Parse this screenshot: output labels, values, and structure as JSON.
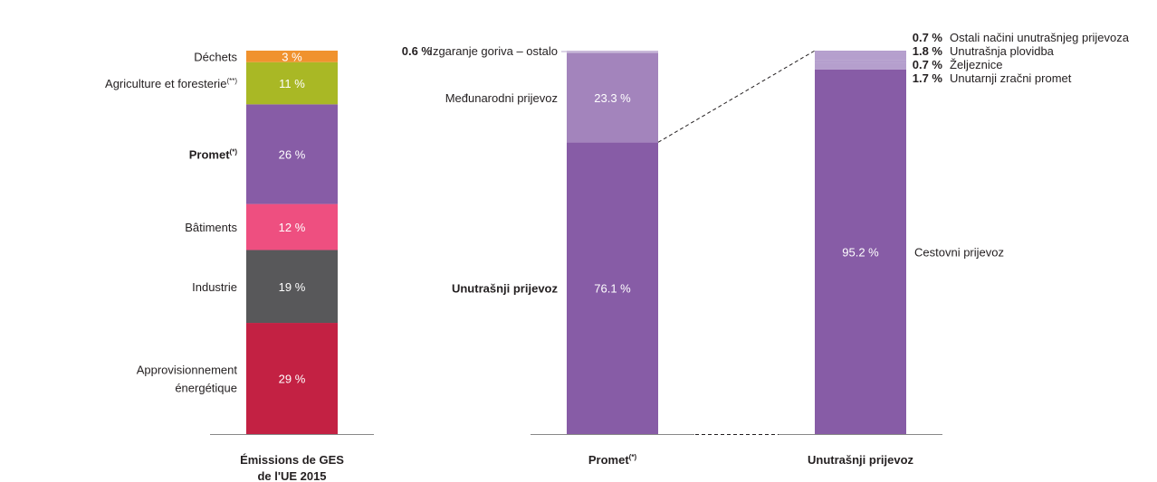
{
  "chart_data": [
    {
      "type": "bar",
      "stacked": true,
      "categories": [
        "Émissions de GES de l'UE 2015"
      ],
      "xlabel_lines": [
        "Émissions de GES",
        "de l'UE 2015"
      ],
      "segments": [
        {
          "label": "Approvisionnement",
          "label2": "énergétique",
          "value": 29,
          "value_label": "29 %",
          "color": "#c32143"
        },
        {
          "label": "Industrie",
          "value": 19,
          "value_label": "19 %",
          "color": "#58585a"
        },
        {
          "label": "Bâtiments",
          "value": 12,
          "value_label": "12 %",
          "color": "#ee4f80"
        },
        {
          "label": "Promet",
          "sup": "(*)",
          "bold": true,
          "value": 26,
          "value_label": "26 %",
          "color": "#875ca6"
        },
        {
          "label": "Agriculture et foresterie",
          "sup": "(**)",
          "value": 11,
          "value_label": "11 %",
          "color": "#a9b825"
        },
        {
          "label": "Déchets",
          "value": 3,
          "value_label": "3 %",
          "color": "#f0922e"
        }
      ]
    },
    {
      "type": "bar",
      "stacked": true,
      "categories": [
        "Promet"
      ],
      "xlabel": "Promet",
      "xlabel_sup": "(*)",
      "segments": [
        {
          "label": "Unutrašnji prijevoz",
          "bold": true,
          "value": 76.1,
          "value_label": "76.1 %",
          "color": "#875ca6"
        },
        {
          "label": "Međunarodni prijevoz",
          "value": 23.3,
          "value_label": "23.3 %",
          "color": "#a384bc"
        },
        {
          "label": "Izgaranje goriva – ostalo",
          "value": 0.6,
          "value_label": "0.6 %",
          "color": "#c9b8d9"
        }
      ]
    },
    {
      "type": "bar",
      "stacked": true,
      "categories": [
        "Unutrašnji prijevoz"
      ],
      "xlabel": "Unutrašnji prijevoz",
      "segments": [
        {
          "label": "Cestovni prijevoz",
          "value": 95.2,
          "value_label": "95.2 %",
          "color": "#875ca6"
        },
        {
          "label": "Unutarnji zračni promet",
          "value": 1.7,
          "value_label": "1.7 %",
          "color": "#b59fcd"
        },
        {
          "label": "Željeznice",
          "value": 0.7,
          "value_label": "0.7 %",
          "color": "#b59fcd"
        },
        {
          "label": "Unutrašnja plovidba",
          "value": 1.8,
          "value_label": "1.8 %",
          "color": "#b59fcd"
        },
        {
          "label": "Ostali načini unutrašnjeg prijevoza",
          "value": 0.7,
          "value_label": "0.7 %",
          "color": "#b59fcd"
        }
      ]
    }
  ]
}
